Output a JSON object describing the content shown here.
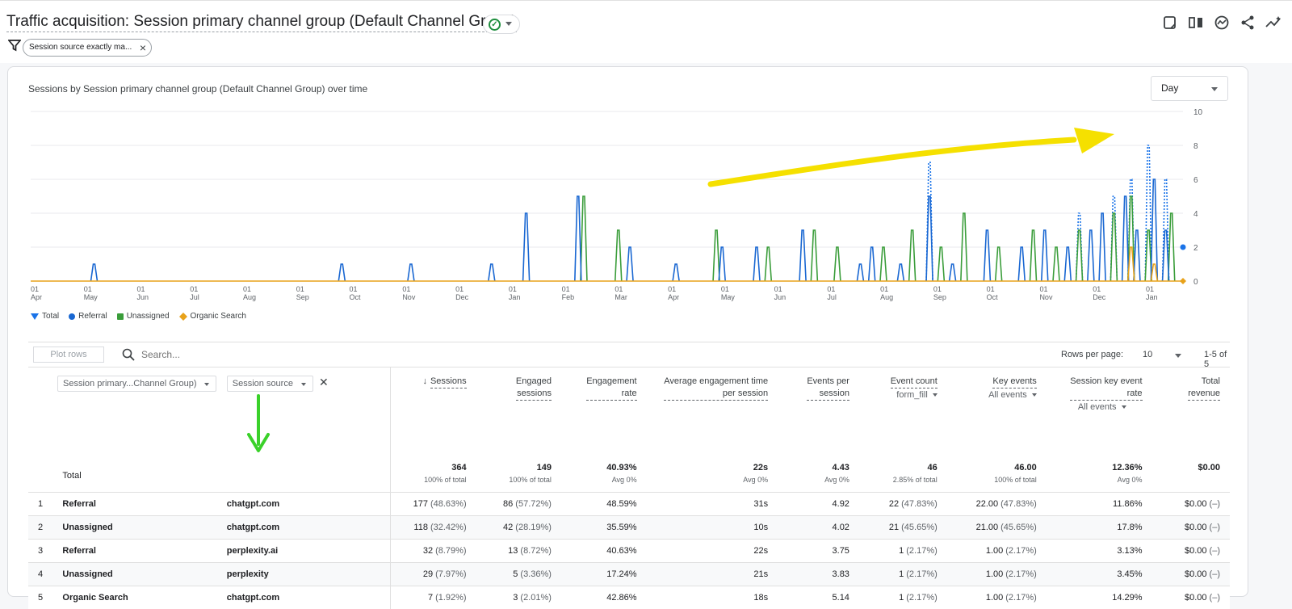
{
  "header": {
    "title": "Traffic acquisition: Session primary channel group (Default Channel Group)",
    "filter_chip": "Session source exactly ma..."
  },
  "chart": {
    "title": "Sessions by Session primary channel group (Default Channel Group) over time",
    "granularity": "Day",
    "legend": [
      "Total",
      "Referral",
      "Unassigned",
      "Organic Search"
    ],
    "colors": {
      "total": "#1a73e8",
      "referral": "#1967d2",
      "unassigned": "#3a9d3a",
      "organic": "#e8a21a"
    }
  },
  "chart_data": {
    "type": "line",
    "y_ticks": [
      "10",
      "8",
      "6",
      "4",
      "2",
      "0"
    ],
    "ylim": [
      0,
      10
    ],
    "x_tick_labels": [
      [
        "01",
        "Apr"
      ],
      [
        "01",
        "May"
      ],
      [
        "01",
        "Jun"
      ],
      [
        "01",
        "Jul"
      ],
      [
        "01",
        "Aug"
      ],
      [
        "01",
        "Sep"
      ],
      [
        "01",
        "Oct"
      ],
      [
        "01",
        "Nov"
      ],
      [
        "01",
        "Dec"
      ],
      [
        "01",
        "Jan"
      ],
      [
        "01",
        "Feb"
      ],
      [
        "01",
        "Mar"
      ],
      [
        "01",
        "Apr"
      ],
      [
        "01",
        "May"
      ],
      [
        "01",
        "Jun"
      ],
      [
        "01",
        "Jul"
      ],
      [
        "01",
        "Aug"
      ],
      [
        "01",
        "Sep"
      ],
      [
        "01",
        "Oct"
      ],
      [
        "01",
        "Nov"
      ],
      [
        "01",
        "Dec"
      ],
      [
        "01",
        "Jan"
      ]
    ],
    "referral_spikes": [
      [
        0.055,
        1
      ],
      [
        0.27,
        1
      ],
      [
        0.33,
        1
      ],
      [
        0.4,
        1
      ],
      [
        0.43,
        4
      ],
      [
        0.475,
        5
      ],
      [
        0.52,
        2
      ],
      [
        0.56,
        1
      ],
      [
        0.6,
        2
      ],
      [
        0.63,
        2
      ],
      [
        0.67,
        3
      ],
      [
        0.72,
        1
      ],
      [
        0.73,
        2
      ],
      [
        0.755,
        1
      ],
      [
        0.78,
        5
      ],
      [
        0.8,
        1
      ],
      [
        0.83,
        3
      ],
      [
        0.86,
        2
      ],
      [
        0.88,
        3
      ],
      [
        0.9,
        2
      ],
      [
        0.92,
        3
      ],
      [
        0.93,
        4
      ],
      [
        0.95,
        5
      ],
      [
        0.96,
        3
      ],
      [
        0.975,
        6
      ],
      [
        0.985,
        3
      ]
    ],
    "unassigned_spikes": [
      [
        0.48,
        5
      ],
      [
        0.51,
        3
      ],
      [
        0.595,
        3
      ],
      [
        0.64,
        2
      ],
      [
        0.68,
        3
      ],
      [
        0.7,
        2
      ],
      [
        0.74,
        2
      ],
      [
        0.765,
        3
      ],
      [
        0.79,
        2
      ],
      [
        0.81,
        4
      ],
      [
        0.84,
        2
      ],
      [
        0.87,
        3
      ],
      [
        0.89,
        2
      ],
      [
        0.91,
        3
      ],
      [
        0.94,
        4
      ],
      [
        0.955,
        5
      ],
      [
        0.97,
        3
      ],
      [
        0.99,
        4
      ]
    ],
    "total_dotted": [
      [
        0.78,
        7
      ],
      [
        0.91,
        4
      ],
      [
        0.94,
        5
      ],
      [
        0.955,
        6
      ],
      [
        0.97,
        8
      ],
      [
        0.985,
        6
      ]
    ],
    "organic_spikes": [
      [
        0.955,
        2
      ],
      [
        0.975,
        1
      ]
    ]
  },
  "table": {
    "plot_rows": "Plot rows",
    "search_placeholder": "Search...",
    "rows_per_page_label": "Rows per page:",
    "rows_per_page": "10",
    "range": "1-5 of 5",
    "dim1": "Session primary...Channel Group)",
    "dim2": "Session source",
    "headers": [
      {
        "l1": "Sessions",
        "l2": "",
        "sub": ""
      },
      {
        "l1": "Engaged",
        "l2": "sessions",
        "sub": ""
      },
      {
        "l1": "Engagement",
        "l2": "rate",
        "sub": ""
      },
      {
        "l1": "Average engagement time",
        "l2": "per session",
        "sub": ""
      },
      {
        "l1": "Events per",
        "l2": "session",
        "sub": ""
      },
      {
        "l1": "Event count",
        "l2": "",
        "sub": "form_fill"
      },
      {
        "l1": "Key events",
        "l2": "",
        "sub": "All events"
      },
      {
        "l1": "Session key event",
        "l2": "rate",
        "sub": "All events"
      },
      {
        "l1": "Total",
        "l2": "revenue",
        "sub": ""
      }
    ],
    "total_label": "Total",
    "totals": [
      {
        "v": "364",
        "s": "100% of total"
      },
      {
        "v": "149",
        "s": "100% of total"
      },
      {
        "v": "40.93%",
        "s": "Avg 0%"
      },
      {
        "v": "22s",
        "s": "Avg 0%"
      },
      {
        "v": "4.43",
        "s": "Avg 0%"
      },
      {
        "v": "46",
        "s": "2.85% of total"
      },
      {
        "v": "46.00",
        "s": "100% of total"
      },
      {
        "v": "12.36%",
        "s": "Avg 0%"
      },
      {
        "v": "$0.00",
        "s": ""
      }
    ],
    "rows": [
      {
        "n": "1",
        "ch": "Referral",
        "src": "chatgpt.com",
        "c": [
          "177",
          "(48.63%)",
          "86",
          "(57.72%)",
          "48.59%",
          "31s",
          "4.92",
          "22",
          "(47.83%)",
          "22.00",
          "(47.83%)",
          "11.86%",
          "$0.00",
          "(–)"
        ]
      },
      {
        "n": "2",
        "ch": "Unassigned",
        "src": "chatgpt.com",
        "c": [
          "118",
          "(32.42%)",
          "42",
          "(28.19%)",
          "35.59%",
          "10s",
          "4.02",
          "21",
          "(45.65%)",
          "21.00",
          "(45.65%)",
          "17.8%",
          "$0.00",
          "(–)"
        ]
      },
      {
        "n": "3",
        "ch": "Referral",
        "src": "perplexity.ai",
        "c": [
          "32",
          "(8.79%)",
          "13",
          "(8.72%)",
          "40.63%",
          "22s",
          "3.75",
          "1",
          "(2.17%)",
          "1.00",
          "(2.17%)",
          "3.13%",
          "$0.00",
          "(–)"
        ]
      },
      {
        "n": "4",
        "ch": "Unassigned",
        "src": "perplexity",
        "c": [
          "29",
          "(7.97%)",
          "5",
          "(3.36%)",
          "17.24%",
          "21s",
          "3.83",
          "1",
          "(2.17%)",
          "1.00",
          "(2.17%)",
          "3.45%",
          "$0.00",
          "(–)"
        ]
      },
      {
        "n": "5",
        "ch": "Organic Search",
        "src": "chatgpt.com",
        "c": [
          "7",
          "(1.92%)",
          "3",
          "(2.01%)",
          "42.86%",
          "18s",
          "5.14",
          "1",
          "(2.17%)",
          "1.00",
          "(2.17%)",
          "14.29%",
          "$0.00",
          "(–)"
        ]
      }
    ]
  }
}
